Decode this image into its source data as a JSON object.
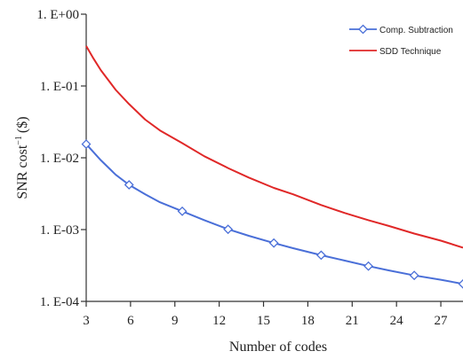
{
  "chart_data": {
    "type": "line",
    "xlabel": "Number of codes",
    "ylabel": "SNR cost⁻¹ ($)",
    "ylabel_main": "SNR cost",
    "ylabel_sup": "−1",
    "ylabel_unit": "($)",
    "xlim": [
      3,
      28.5
    ],
    "ylim": [
      0.0001,
      1
    ],
    "yscale": "log",
    "grid": false,
    "legend_position": "top-right",
    "x_ticks": [
      3,
      6,
      9,
      12,
      15,
      18,
      21,
      24,
      27
    ],
    "x_tick_labels": [
      "3",
      "6",
      "9",
      "12",
      "15",
      "18",
      "21",
      "24",
      "27"
    ],
    "y_ticks": [
      1,
      0.1,
      0.01,
      0.001,
      0.0001
    ],
    "y_tick_labels": [
      "1. E+00",
      "1. E-01",
      "1. E-02",
      "1. E-03",
      "1. E-04"
    ],
    "series": [
      {
        "name": "Comp. Subtraction",
        "color": "#4a6fd8",
        "marker": "diamond",
        "markers_x": [
          3,
          5.9,
          9.5,
          12.6,
          15.7,
          18.9,
          22.1,
          25.2,
          28.5
        ],
        "x": [
          3,
          4,
          5,
          5.9,
          7,
          8,
          9.5,
          11,
          12.6,
          14,
          15.7,
          17,
          18.9,
          20.5,
          22.1,
          23.5,
          25.2,
          27,
          28.5
        ],
        "values": [
          0.0155,
          0.0092,
          0.0058,
          0.0042,
          0.0031,
          0.0024,
          0.0018,
          0.00135,
          0.00101,
          0.00082,
          0.00065,
          0.00055,
          0.00044,
          0.00037,
          0.00031,
          0.00027,
          0.00023,
          0.0002,
          0.000175
        ]
      },
      {
        "name": "SDD Technique",
        "color": "#e02828",
        "x": [
          3,
          3.5,
          4,
          5,
          5.9,
          7,
          8,
          9.5,
          11,
          12.6,
          14,
          15.7,
          17,
          18.9,
          20.5,
          22.1,
          23.5,
          25.2,
          27,
          28.5
        ],
        "values": [
          0.36,
          0.24,
          0.165,
          0.088,
          0.056,
          0.034,
          0.024,
          0.016,
          0.0105,
          0.0072,
          0.0053,
          0.0038,
          0.0031,
          0.0022,
          0.0017,
          0.00135,
          0.00112,
          0.00088,
          0.0007,
          0.00056
        ]
      }
    ]
  }
}
